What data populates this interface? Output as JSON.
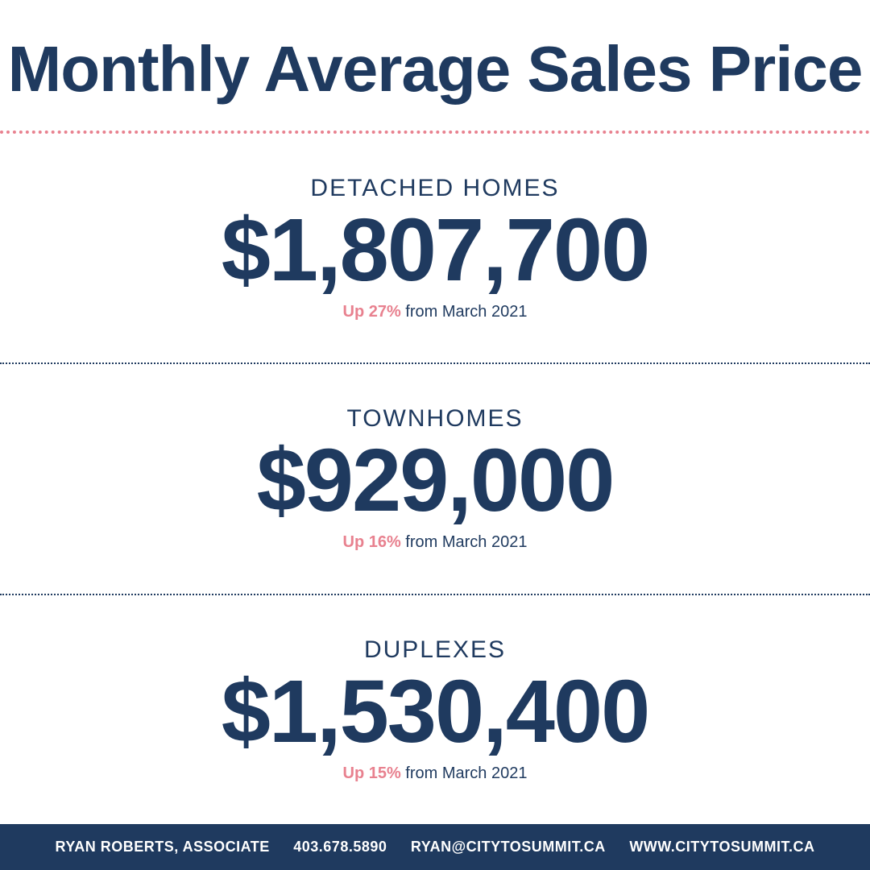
{
  "title": "Monthly Average Sales Price",
  "colors": {
    "navy": "#1f3a5f",
    "pink": "#e8818f",
    "white": "#ffffff"
  },
  "sections": [
    {
      "label": "DETACHED HOMES",
      "price": "$1,807,700",
      "change_highlight": "Up 27%",
      "change_rest": " from March 2021"
    },
    {
      "label": "TOWNHOMES",
      "price": "$929,000",
      "change_highlight": "Up 16%",
      "change_rest": " from March 2021"
    },
    {
      "label": "DUPLEXES",
      "price": "$1,530,400",
      "change_highlight": "Up 15%",
      "change_rest": " from March 2021"
    }
  ],
  "footer": {
    "name": "RYAN ROBERTS, ASSOCIATE",
    "phone": "403.678.5890",
    "email": "RYAN@CITYTOSUMMIT.CA",
    "website": "WWW.CITYTOSUMMIT.CA"
  }
}
